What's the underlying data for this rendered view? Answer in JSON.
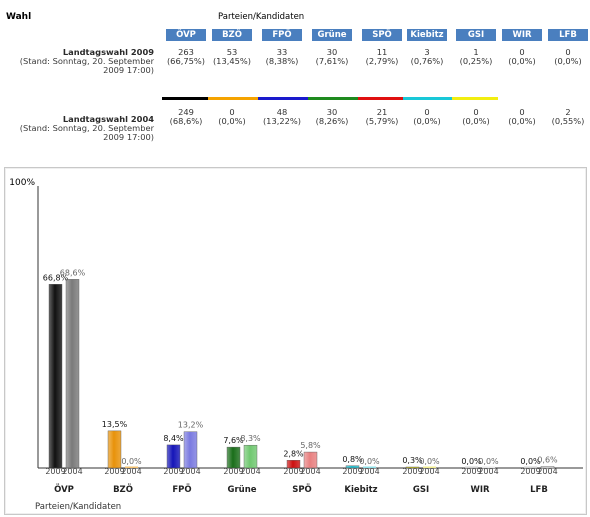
{
  "table": {
    "wahl_label": "Wahl",
    "parteien_label": "Parteien/Kandidaten",
    "parties": [
      {
        "name": "ÖVP",
        "color": "#000000"
      },
      {
        "name": "BZÖ",
        "color": "#f5a300"
      },
      {
        "name": "FPÖ",
        "color": "#1a1acc"
      },
      {
        "name": "Grüne",
        "color": "#1e8a1e"
      },
      {
        "name": "SPÖ",
        "color": "#e01010"
      },
      {
        "name": "Kiebitz",
        "color": "#18c8d8"
      },
      {
        "name": "GSI",
        "color": "#f2ee10"
      },
      {
        "name": "WIR",
        "color": "#ffffff"
      },
      {
        "name": "LFB",
        "color": "#ffffff"
      }
    ],
    "rows": [
      {
        "title": "Landtagswahl 2009",
        "stand_line1": "(Stand: Sonntag, 20. September",
        "stand_line2": "2009 17:00)",
        "votes": [
          "263",
          "53",
          "33",
          "30",
          "11",
          "3",
          "1",
          "0",
          "0"
        ],
        "percents": [
          "(66,75%)",
          "(13,45%)",
          "(8,38%)",
          "(7,61%)",
          "(2,79%)",
          "(0,76%)",
          "(0,25%)",
          "(0,0%)",
          "(0,0%)"
        ]
      },
      {
        "title": "Landtagswahl 2004",
        "stand_line1": "(Stand: Sonntag, 20. September",
        "stand_line2": "2009 17:00)",
        "votes": [
          "249",
          "0",
          "48",
          "30",
          "21",
          "0",
          "0",
          "0",
          "2"
        ],
        "percents": [
          "(68,6%)",
          "(0,0%)",
          "(13,22%)",
          "(8,26%)",
          "(5,79%)",
          "(0,0%)",
          "(0,0%)",
          "(0,0%)",
          "(0,55%)"
        ]
      }
    ]
  },
  "chart_data": {
    "type": "bar",
    "y_axis_label": "100%",
    "xlabel": "Parteien/Kandidaten",
    "ylim": [
      0,
      100
    ],
    "categories": [
      "ÖVP",
      "BZÖ",
      "FPÖ",
      "Grüne",
      "SPÖ",
      "Kiebitz",
      "GSI",
      "WIR",
      "LFB"
    ],
    "series": [
      {
        "name": "2009",
        "values": [
          66.8,
          13.5,
          8.4,
          7.6,
          2.8,
          0.8,
          0.3,
          0.0,
          0.0
        ],
        "labels": [
          "66,8%",
          "13,5%",
          "8,4%",
          "7,6%",
          "2,8%",
          "0,8%",
          "0,3%",
          "0,0%",
          "0,0%"
        ]
      },
      {
        "name": "2004",
        "values": [
          68.6,
          0.0,
          13.2,
          8.3,
          5.8,
          0.0,
          0.0,
          0.0,
          0.6
        ],
        "labels": [
          "68,6%",
          "0,0%",
          "13,2%",
          "8,3%",
          "5,8%",
          "0,0%",
          "0,0%",
          "0,0%",
          "0,6%"
        ]
      }
    ],
    "colors_2009": [
      "#111111",
      "#e8920a",
      "#1515b8",
      "#1a6e1a",
      "#cc1010",
      "#20b8c8",
      "#e0d810",
      "#d0d0d0",
      "#d0d0d0"
    ],
    "colors_2004": [
      "#7a7a7a",
      "#f2c070",
      "#7a7ae0",
      "#70c870",
      "#e88080",
      "#90e0e8",
      "#f0ec90",
      "#e8e8e8",
      "#e8e8e8"
    ]
  }
}
